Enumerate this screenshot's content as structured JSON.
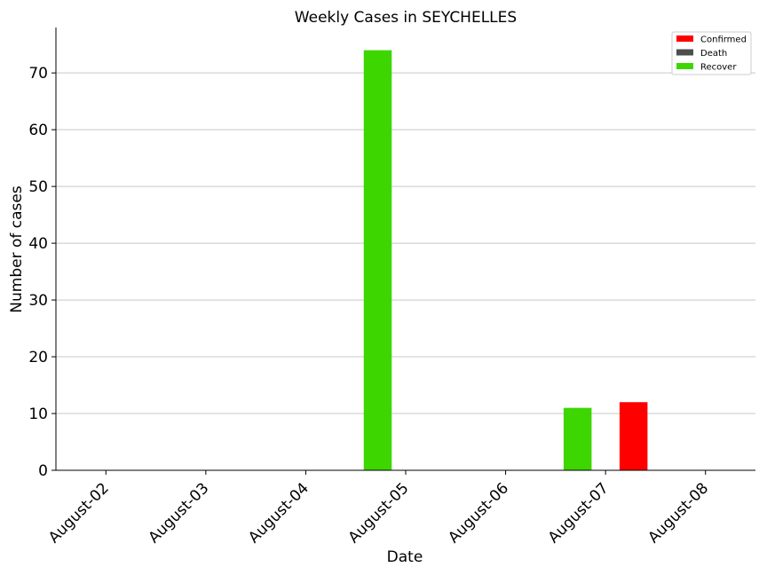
{
  "chart_data": {
    "type": "bar",
    "title": "Weekly Cases in SEYCHELLES",
    "xlabel": "Date",
    "ylabel": "Number of cases",
    "categories": [
      "August-02",
      "August-03",
      "August-04",
      "August-05",
      "August-06",
      "August-07",
      "August-08"
    ],
    "series": [
      {
        "name": "Recover",
        "color": "#3dd600",
        "values": [
          0,
          0,
          0,
          74,
          0,
          11,
          0
        ]
      },
      {
        "name": "Death",
        "color": "#4d4d4d",
        "values": [
          0,
          0,
          0,
          0,
          0,
          0,
          0
        ]
      },
      {
        "name": "Confirmed",
        "color": "#ff0000",
        "values": [
          0,
          0,
          0,
          0,
          0,
          12,
          0
        ]
      }
    ],
    "legend_order": [
      "Confirmed",
      "Death",
      "Recover"
    ],
    "legend_position": "top-right",
    "ylim": [
      0,
      78
    ],
    "yticks": [
      0,
      10,
      20,
      30,
      40,
      50,
      60,
      70
    ],
    "grid": "horizontal",
    "grid_color": "#c8c8c8"
  }
}
